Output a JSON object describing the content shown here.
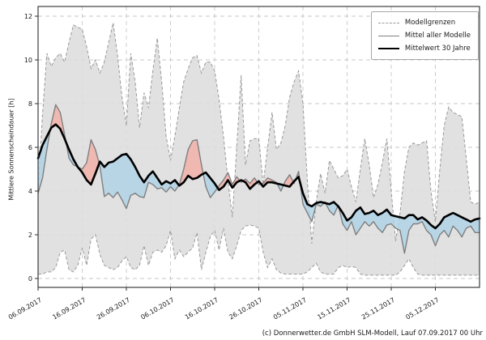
{
  "ylabel": "Mittlere Sonnenscheindauer [h]",
  "footer": {
    "copyright": "(c) Donnerwetter.de GmbH SLM-Modell, Lauf 07.09.2017 00 Uhr"
  },
  "legend": {
    "entries": [
      {
        "label": "Modellgrenzen",
        "style": "dashed-gray"
      },
      {
        "label": "Mittel aller Modelle",
        "style": "solid-gray"
      },
      {
        "label": "Mittelwert 30 Jahre",
        "style": "thick-black"
      }
    ]
  },
  "chart_data": {
    "type": "area",
    "title": "",
    "xlabel": "",
    "ylabel": "Mittlere Sonnenscheindauer [h]",
    "ylim": [
      -0.4,
      12.45
    ],
    "yticks": [
      0,
      2,
      4,
      6,
      8,
      10,
      12
    ],
    "grid": true,
    "legend_position": "upper right",
    "x_is_daily_from": "06.09.2017",
    "xtick_days": [
      0,
      10,
      20,
      30,
      40,
      50,
      60,
      70,
      80,
      90
    ],
    "xtick_labels": [
      "06.09.2017",
      "16.09.2017",
      "26.09.2017",
      "06.10.2017",
      "16.10.2017",
      "26.10.2017",
      "05.11.2017",
      "15.11.2017",
      "25.11.2017",
      "05.12.2017"
    ],
    "colors": {
      "band_fill": "#dcdcdc",
      "band_edge": "#9a9a9a",
      "above_normal_fill": "#f0b2aa",
      "below_normal_fill": "#aed2e6",
      "model_mean_line": "#7f7f7f",
      "mean30_line": "#000000",
      "grid": "#c7c7c7",
      "background": "#ffffff"
    },
    "series": [
      {
        "name": "Modellgrenzen obere Grenze",
        "values": [
          4.0,
          7.5,
          10.3,
          9.7,
          10.1,
          10.3,
          9.9,
          10.8,
          11.6,
          11.5,
          11.4,
          10.6,
          9.6,
          10.0,
          9.4,
          9.9,
          10.8,
          11.7,
          10.2,
          8.3,
          7.0,
          10.3,
          9.0,
          6.9,
          8.5,
          7.8,
          9.5,
          11.0,
          9.0,
          6.5,
          5.4,
          6.5,
          7.8,
          9.0,
          9.6,
          10.1,
          10.2,
          9.4,
          9.9,
          9.9,
          9.5,
          8.2,
          6.5,
          4.5,
          2.8,
          6.0,
          9.3,
          5.2,
          6.3,
          6.4,
          6.4,
          4.3,
          6.0,
          7.6,
          5.9,
          6.2,
          7.0,
          8.3,
          9.0,
          9.5,
          8.0,
          4.5,
          1.6,
          3.5,
          4.8,
          3.9,
          5.4,
          5.0,
          4.6,
          4.7,
          5.0,
          4.2,
          3.5,
          5.0,
          6.4,
          5.2,
          3.7,
          4.3,
          5.3,
          6.4,
          4.0,
          1.7,
          3.0,
          4.9,
          6.0,
          6.2,
          6.1,
          6.2,
          6.3,
          4.0,
          2.6,
          5.0,
          7.0,
          7.85,
          7.6,
          7.5,
          7.4,
          5.5,
          3.5,
          3.4,
          3.5
        ]
      },
      {
        "name": "Modellgrenzen untere Grenze",
        "values": [
          0.2,
          0.2,
          0.3,
          0.3,
          0.5,
          1.2,
          1.3,
          0.4,
          0.3,
          0.6,
          1.4,
          0.6,
          1.8,
          2.0,
          1.1,
          0.6,
          0.5,
          0.4,
          0.5,
          0.8,
          1.0,
          0.5,
          0.4,
          0.6,
          1.5,
          0.6,
          1.2,
          1.3,
          1.2,
          1.5,
          2.2,
          0.9,
          1.3,
          1.0,
          1.2,
          1.4,
          2.1,
          0.4,
          1.2,
          1.9,
          2.2,
          1.3,
          2.3,
          1.2,
          0.9,
          1.5,
          2.2,
          2.4,
          2.45,
          2.4,
          2.3,
          1.2,
          0.5,
          0.9,
          0.4,
          0.25,
          0.2,
          0.2,
          0.2,
          0.2,
          0.2,
          0.3,
          0.5,
          0.7,
          0.3,
          0.2,
          0.2,
          0.2,
          0.5,
          0.6,
          0.5,
          0.55,
          0.5,
          0.2,
          0.15,
          0.15,
          0.15,
          0.15,
          0.15,
          0.15,
          0.15,
          0.15,
          0.3,
          0.6,
          0.9,
          0.5,
          0.2,
          0.15,
          0.15,
          0.15,
          0.15,
          0.15,
          0.15,
          0.15,
          0.15,
          0.15,
          0.15,
          0.15,
          0.15,
          0.15,
          0.15
        ]
      },
      {
        "name": "Mittel aller Modelle",
        "values": [
          3.9,
          4.6,
          5.9,
          7.1,
          7.95,
          7.6,
          6.6,
          5.5,
          5.2,
          5.1,
          5.0,
          5.3,
          6.35,
          5.9,
          5.15,
          3.75,
          3.9,
          3.7,
          3.95,
          3.6,
          3.2,
          3.8,
          3.9,
          3.75,
          3.7,
          4.4,
          4.3,
          4.1,
          4.15,
          3.95,
          4.2,
          4.0,
          4.3,
          5.0,
          5.9,
          6.3,
          6.35,
          5.2,
          4.2,
          3.7,
          3.95,
          4.25,
          4.5,
          4.85,
          4.3,
          4.65,
          4.4,
          4.55,
          4.35,
          4.6,
          4.3,
          4.35,
          4.6,
          4.5,
          4.4,
          4.0,
          4.45,
          4.75,
          4.35,
          4.9,
          3.4,
          3.0,
          2.6,
          3.4,
          3.3,
          3.5,
          3.1,
          2.9,
          3.35,
          2.5,
          2.2,
          2.6,
          2.0,
          2.3,
          2.6,
          2.4,
          2.6,
          2.3,
          2.1,
          2.45,
          2.5,
          2.3,
          2.2,
          1.15,
          2.2,
          2.5,
          2.5,
          2.6,
          2.2,
          2.0,
          1.5,
          2.0,
          2.2,
          1.9,
          2.4,
          2.2,
          1.9,
          2.3,
          2.4,
          2.1,
          2.1
        ]
      },
      {
        "name": "Mittelwert 30 Jahre",
        "values": [
          5.5,
          6.1,
          6.5,
          6.9,
          7.05,
          6.85,
          6.4,
          5.9,
          5.45,
          5.1,
          4.85,
          4.5,
          4.3,
          4.8,
          5.35,
          5.1,
          5.3,
          5.35,
          5.5,
          5.65,
          5.7,
          5.45,
          5.1,
          4.7,
          4.4,
          4.7,
          4.9,
          4.6,
          4.3,
          4.45,
          4.35,
          4.5,
          4.25,
          4.4,
          4.7,
          4.55,
          4.6,
          4.75,
          4.85,
          4.6,
          4.35,
          4.05,
          4.2,
          4.5,
          4.15,
          4.4,
          4.5,
          4.4,
          4.1,
          4.3,
          4.45,
          4.2,
          4.4,
          4.4,
          4.35,
          4.3,
          4.25,
          4.2,
          4.45,
          4.65,
          3.9,
          3.4,
          3.3,
          3.45,
          3.5,
          3.45,
          3.4,
          3.5,
          3.3,
          3.0,
          2.65,
          2.8,
          3.1,
          3.25,
          2.95,
          3.0,
          3.1,
          2.9,
          3.0,
          3.15,
          2.9,
          2.85,
          2.8,
          2.75,
          2.9,
          2.9,
          2.7,
          2.8,
          2.65,
          2.45,
          2.3,
          2.5,
          2.8,
          2.9,
          3.0,
          2.9,
          2.8,
          2.7,
          2.6,
          2.7,
          2.75
        ]
      }
    ]
  }
}
